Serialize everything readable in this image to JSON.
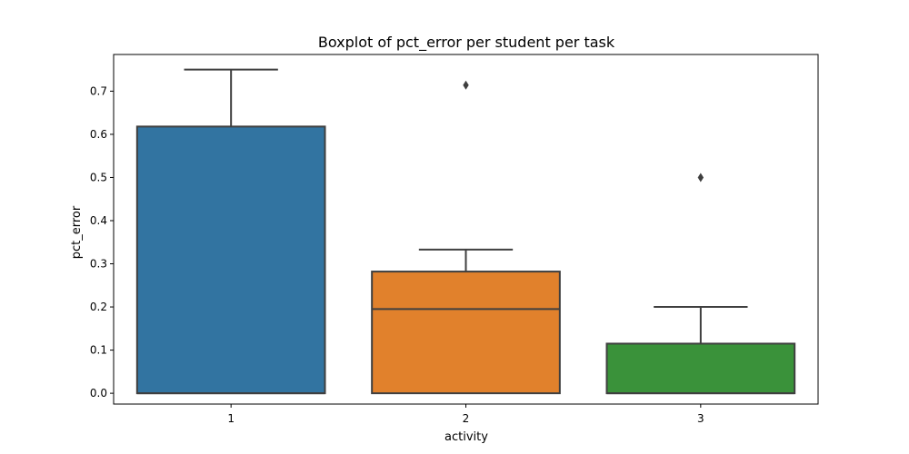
{
  "chart_data": {
    "type": "box",
    "title": "Boxplot of pct_error per student per task",
    "xlabel": "activity",
    "ylabel": "pct_error",
    "ylim": [
      -0.025,
      0.785
    ],
    "yticks": [
      "0.0",
      "0.1",
      "0.2",
      "0.3",
      "0.4",
      "0.5",
      "0.6",
      "0.7"
    ],
    "grid": false,
    "categories": [
      "1",
      "2",
      "3"
    ],
    "boxes": [
      {
        "category": "1",
        "whisker_low": 0.0,
        "q1": 0.0,
        "median": 0.0,
        "q3": 0.618,
        "whisker_high": 0.75,
        "outliers": [],
        "color": "#3274a1"
      },
      {
        "category": "2",
        "whisker_low": 0.0,
        "q1": 0.0,
        "median": 0.195,
        "q3": 0.282,
        "whisker_high": 0.333,
        "outliers": [
          0.714
        ],
        "color": "#e1812c"
      },
      {
        "category": "3",
        "whisker_low": 0.0,
        "q1": 0.0,
        "median": 0.0,
        "q3": 0.115,
        "whisker_high": 0.2,
        "outliers": [
          0.5
        ],
        "color": "#3a923a"
      }
    ],
    "colors": {
      "line": "#3f3f3f",
      "axis": "#000000"
    }
  }
}
